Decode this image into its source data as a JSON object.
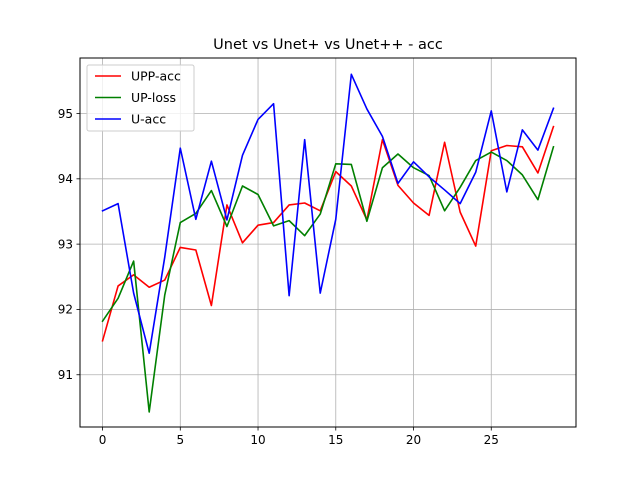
{
  "chart_data": {
    "type": "line",
    "title": "Unet vs Unet+ vs Unet++ - acc",
    "xlabel": "",
    "ylabel": "",
    "xlim": [
      -1.45,
      30.45
    ],
    "ylim": [
      90.2,
      95.85
    ],
    "xticks": [
      0,
      5,
      10,
      15,
      20,
      25
    ],
    "yticks": [
      91,
      92,
      93,
      94,
      95
    ],
    "grid": true,
    "legend_position": "top-left",
    "x": [
      0,
      1,
      2,
      3,
      4,
      5,
      6,
      7,
      8,
      9,
      10,
      11,
      12,
      13,
      14,
      15,
      16,
      17,
      18,
      19,
      20,
      21,
      22,
      23,
      24,
      25,
      26,
      27,
      28,
      29
    ],
    "series": [
      {
        "name": "UPP-acc",
        "color": "#ff0000",
        "values": [
          91.52,
          92.36,
          92.53,
          92.34,
          92.45,
          92.95,
          92.91,
          92.06,
          93.6,
          93.02,
          93.29,
          93.33,
          93.6,
          93.63,
          93.51,
          94.11,
          93.89,
          93.37,
          94.6,
          93.9,
          93.63,
          93.44,
          94.56,
          93.49,
          92.97,
          94.43,
          94.51,
          94.49,
          94.09,
          94.8
        ]
      },
      {
        "name": "UP-loss",
        "color": "#008000",
        "values": [
          91.82,
          92.17,
          92.74,
          90.43,
          92.22,
          93.33,
          93.47,
          93.82,
          93.27,
          93.89,
          93.76,
          93.28,
          93.36,
          93.13,
          93.46,
          94.23,
          94.22,
          93.35,
          94.17,
          94.38,
          94.17,
          94.05,
          93.51,
          93.87,
          94.28,
          94.41,
          94.28,
          94.06,
          93.68,
          94.49
        ]
      },
      {
        "name": "U-acc",
        "color": "#0000ff",
        "values": [
          93.51,
          93.62,
          92.25,
          91.33,
          92.8,
          94.47,
          93.38,
          94.27,
          93.37,
          94.36,
          94.91,
          95.15,
          92.21,
          94.6,
          92.25,
          93.38,
          95.6,
          95.07,
          94.65,
          93.93,
          94.26,
          94.03,
          93.83,
          93.62,
          94.1,
          95.04,
          93.8,
          94.75,
          94.44,
          95.08
        ]
      }
    ]
  }
}
